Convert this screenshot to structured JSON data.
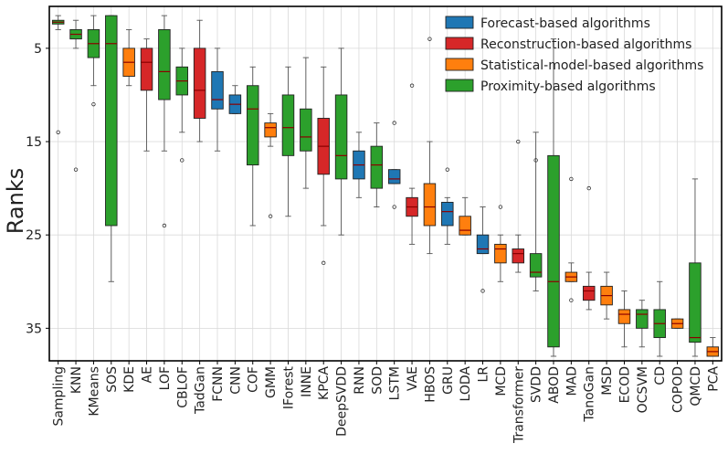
{
  "chart_data": {
    "type": "boxplot",
    "title": "",
    "xlabel": "",
    "ylabel": "Ranks",
    "ylim": [
      40,
      0.5
    ],
    "y_inverted": true,
    "yticks": [
      5,
      15,
      25,
      35
    ],
    "grid": true,
    "legend_position": "top-right",
    "colors": {
      "forecast": "#1f77b4",
      "reconstruction": "#d62728",
      "statistical": "#ff7f0e",
      "proximity": "#2ca02c"
    },
    "legend": [
      {
        "key": "forecast",
        "label": "Forecast-based algorithms"
      },
      {
        "key": "reconstruction",
        "label": "Reconstruction-based algorithms"
      },
      {
        "key": "statistical",
        "label": "Statistical-model-based algorithms"
      },
      {
        "key": "proximity",
        "label": "Proximity-based algorithms"
      }
    ],
    "boxes": [
      {
        "name": "Sampling",
        "group": "proximity",
        "whislo": 1.5,
        "q1": 2.0,
        "med": 2.2,
        "q3": 2.4,
        "whishi": 3.0,
        "fliers": [
          14.0
        ]
      },
      {
        "name": "KNN",
        "group": "proximity",
        "whislo": 2.0,
        "q1": 3.0,
        "med": 3.5,
        "q3": 4.0,
        "whishi": 5.0,
        "fliers": [
          18.0
        ]
      },
      {
        "name": "KMeans",
        "group": "proximity",
        "whislo": 1.5,
        "q1": 3.0,
        "med": 4.5,
        "q3": 6.0,
        "whishi": 9.0,
        "fliers": [
          11.0
        ]
      },
      {
        "name": "SOS",
        "group": "proximity",
        "whislo": 1.5,
        "q1": 1.5,
        "med": 4.5,
        "q3": 24.0,
        "whishi": 30.0,
        "fliers": []
      },
      {
        "name": "KDE",
        "group": "statistical",
        "whislo": 3.0,
        "q1": 5.0,
        "med": 6.5,
        "q3": 8.0,
        "whishi": 9.0,
        "fliers": []
      },
      {
        "name": "AE",
        "group": "reconstruction",
        "whislo": 4.0,
        "q1": 5.0,
        "med": 6.5,
        "q3": 9.5,
        "whishi": 16.0,
        "fliers": []
      },
      {
        "name": "LOF",
        "group": "proximity",
        "whislo": 1.5,
        "q1": 3.0,
        "med": 7.5,
        "q3": 10.5,
        "whishi": 16.0,
        "fliers": [
          24.0
        ]
      },
      {
        "name": "CBLOF",
        "group": "proximity",
        "whislo": 5.0,
        "q1": 7.0,
        "med": 8.5,
        "q3": 10.0,
        "whishi": 14.0,
        "fliers": [
          17.0
        ]
      },
      {
        "name": "TadGan",
        "group": "reconstruction",
        "whislo": 2.0,
        "q1": 5.0,
        "med": 9.5,
        "q3": 12.5,
        "whishi": 15.0,
        "fliers": []
      },
      {
        "name": "FCNN",
        "group": "forecast",
        "whislo": 5.0,
        "q1": 7.5,
        "med": 10.5,
        "q3": 11.5,
        "whishi": 16.0,
        "fliers": []
      },
      {
        "name": "CNN",
        "group": "forecast",
        "whislo": 9.0,
        "q1": 10.0,
        "med": 11.0,
        "q3": 12.0,
        "whishi": 12.0,
        "fliers": []
      },
      {
        "name": "COF",
        "group": "proximity",
        "whislo": 7.0,
        "q1": 9.0,
        "med": 11.5,
        "q3": 17.5,
        "whishi": 24.0,
        "fliers": []
      },
      {
        "name": "GMM",
        "group": "statistical",
        "whislo": 12.0,
        "q1": 13.0,
        "med": 13.5,
        "q3": 14.5,
        "whishi": 15.5,
        "fliers": [
          23.0
        ]
      },
      {
        "name": "IForest",
        "group": "proximity",
        "whislo": 7.0,
        "q1": 10.0,
        "med": 13.5,
        "q3": 16.5,
        "whishi": 23.0,
        "fliers": []
      },
      {
        "name": "INNE",
        "group": "proximity",
        "whislo": 6.0,
        "q1": 11.5,
        "med": 14.5,
        "q3": 16.0,
        "whishi": 20.0,
        "fliers": []
      },
      {
        "name": "KPCA",
        "group": "reconstruction",
        "whislo": 7.0,
        "q1": 12.5,
        "med": 15.5,
        "q3": 18.5,
        "whishi": 24.0,
        "fliers": [
          28.0
        ]
      },
      {
        "name": "DeepSVDD",
        "group": "proximity",
        "whislo": 5.0,
        "q1": 10.0,
        "med": 16.5,
        "q3": 19.0,
        "whishi": 25.0,
        "fliers": []
      },
      {
        "name": "RNN",
        "group": "forecast",
        "whislo": 14.0,
        "q1": 16.0,
        "med": 17.5,
        "q3": 19.0,
        "whishi": 21.0,
        "fliers": []
      },
      {
        "name": "SOD",
        "group": "proximity",
        "whislo": 13.0,
        "q1": 15.5,
        "med": 17.5,
        "q3": 20.0,
        "whishi": 22.0,
        "fliers": []
      },
      {
        "name": "LSTM",
        "group": "forecast",
        "whislo": 18.0,
        "q1": 18.0,
        "med": 19.0,
        "q3": 19.5,
        "whishi": 19.5,
        "fliers": [
          13.0,
          22.0
        ]
      },
      {
        "name": "VAE",
        "group": "reconstruction",
        "whislo": 20.0,
        "q1": 21.0,
        "med": 22.0,
        "q3": 23.0,
        "whishi": 26.0,
        "fliers": [
          9.0
        ]
      },
      {
        "name": "HBOS",
        "group": "statistical",
        "whislo": 15.0,
        "q1": 19.5,
        "med": 22.0,
        "q3": 24.0,
        "whishi": 27.0,
        "fliers": [
          4.0
        ]
      },
      {
        "name": "GRU",
        "group": "forecast",
        "whislo": 21.0,
        "q1": 21.5,
        "med": 22.5,
        "q3": 24.0,
        "whishi": 26.0,
        "fliers": [
          18.0
        ]
      },
      {
        "name": "LODA",
        "group": "statistical",
        "whislo": 21.0,
        "q1": 23.0,
        "med": 24.5,
        "q3": 25.0,
        "whishi": 25.0,
        "fliers": []
      },
      {
        "name": "LR",
        "group": "forecast",
        "whislo": 22.0,
        "q1": 25.0,
        "med": 26.5,
        "q3": 27.0,
        "whishi": 27.0,
        "fliers": [
          31.0
        ]
      },
      {
        "name": "MCD",
        "group": "statistical",
        "whislo": 25.0,
        "q1": 26.0,
        "med": 26.5,
        "q3": 28.0,
        "whishi": 30.0,
        "fliers": [
          22.0
        ]
      },
      {
        "name": "Transformer",
        "group": "reconstruction",
        "whislo": 25.0,
        "q1": 26.5,
        "med": 27.0,
        "q3": 28.0,
        "whishi": 29.0,
        "fliers": [
          15.0
        ]
      },
      {
        "name": "SVDD",
        "group": "proximity",
        "whislo": 14.0,
        "q1": 27.0,
        "med": 29.0,
        "q3": 29.5,
        "whishi": 31.0,
        "fliers": [
          17.0
        ]
      },
      {
        "name": "ABOD",
        "group": "proximity",
        "whislo": 4.0,
        "q1": 16.5,
        "med": 30.0,
        "q3": 37.0,
        "whishi": 38.0,
        "fliers": []
      },
      {
        "name": "MAD",
        "group": "statistical",
        "whislo": 28.0,
        "q1": 29.0,
        "med": 29.5,
        "q3": 30.0,
        "whishi": 30.0,
        "fliers": [
          19.0,
          32.0
        ]
      },
      {
        "name": "TanoGan",
        "group": "reconstruction",
        "whislo": 29.0,
        "q1": 30.5,
        "med": 31.0,
        "q3": 32.0,
        "whishi": 33.0,
        "fliers": [
          20.0
        ]
      },
      {
        "name": "MSD",
        "group": "statistical",
        "whislo": 29.0,
        "q1": 30.5,
        "med": 31.5,
        "q3": 32.5,
        "whishi": 34.0,
        "fliers": []
      },
      {
        "name": "ECOD",
        "group": "statistical",
        "whislo": 31.0,
        "q1": 33.0,
        "med": 33.5,
        "q3": 34.5,
        "whishi": 37.0,
        "fliers": []
      },
      {
        "name": "OCSVM",
        "group": "proximity",
        "whislo": 32.0,
        "q1": 33.0,
        "med": 33.5,
        "q3": 35.0,
        "whishi": 37.0,
        "fliers": []
      },
      {
        "name": "CD",
        "group": "proximity",
        "whislo": 30.0,
        "q1": 33.0,
        "med": 34.5,
        "q3": 36.0,
        "whishi": 38.0,
        "fliers": []
      },
      {
        "name": "COPOD",
        "group": "statistical",
        "whislo": 34.0,
        "q1": 34.0,
        "med": 34.5,
        "q3": 35.0,
        "whishi": 35.0,
        "fliers": []
      },
      {
        "name": "QMCD",
        "group": "proximity",
        "whislo": 19.0,
        "q1": 28.0,
        "med": 36.0,
        "q3": 36.5,
        "whishi": 38.0,
        "fliers": []
      },
      {
        "name": "PCA",
        "group": "statistical",
        "whislo": 36.0,
        "q1": 37.0,
        "med": 37.5,
        "q3": 38.0,
        "whishi": 38.0,
        "fliers": []
      }
    ]
  }
}
